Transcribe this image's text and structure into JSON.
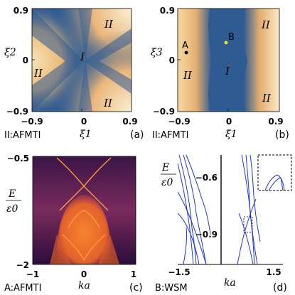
{
  "panels": {
    "a": {
      "y_axis_label": "ξ2",
      "x_axis_label": "ξ1",
      "y_ticks": [
        "0.9",
        "0",
        "−0.9"
      ],
      "x_ticks": [
        "−0.9",
        "0",
        "0.9"
      ],
      "region_labels": [
        "II",
        "I",
        "II",
        "II"
      ],
      "legend": "II:AFMTI",
      "tag": "(a)"
    },
    "b": {
      "y_axis_label": "ξ3",
      "x_axis_label": "ξ1",
      "y_ticks": [
        "0.9",
        "0",
        "−0.9"
      ],
      "x_ticks": [
        "−0.9",
        "0",
        "0.9"
      ],
      "region_labels": [
        "II",
        "I",
        "II",
        "II"
      ],
      "points": [
        {
          "label": "A",
          "xi1": -0.85,
          "xi3": 0.12,
          "color": "#000000"
        },
        {
          "label": "B",
          "xi1": -0.02,
          "xi3": 0.33,
          "color": "#f4e21a"
        }
      ],
      "legend": "II:AFMTI",
      "tag": "(b)"
    },
    "c": {
      "y_axis_label_num": "E",
      "y_axis_label_den": "ε0",
      "x_axis_label": "ka",
      "y_ticks": [
        "−0.5",
        "−2"
      ],
      "x_ticks": [
        "−1",
        "0",
        "1"
      ],
      "legend": "A:AFMTI",
      "tag": "(c)"
    },
    "d": {
      "y_axis_label_num": "E",
      "y_axis_label_den": "ε0",
      "x_axis_label": "ka",
      "y_ticks": [
        "−0.6",
        "−0.9"
      ],
      "x_ticks": [
        "−1.5",
        "1.5"
      ],
      "legend": "B:WSM",
      "tag": "(d)"
    }
  },
  "colors": {
    "phase_blue": "#2f5b93",
    "phase_gold": "#f0c987",
    "spectral_dark": "#2a0d3a",
    "spectral_orange": "#f07a28",
    "band_blue": "#1d36d6"
  }
}
